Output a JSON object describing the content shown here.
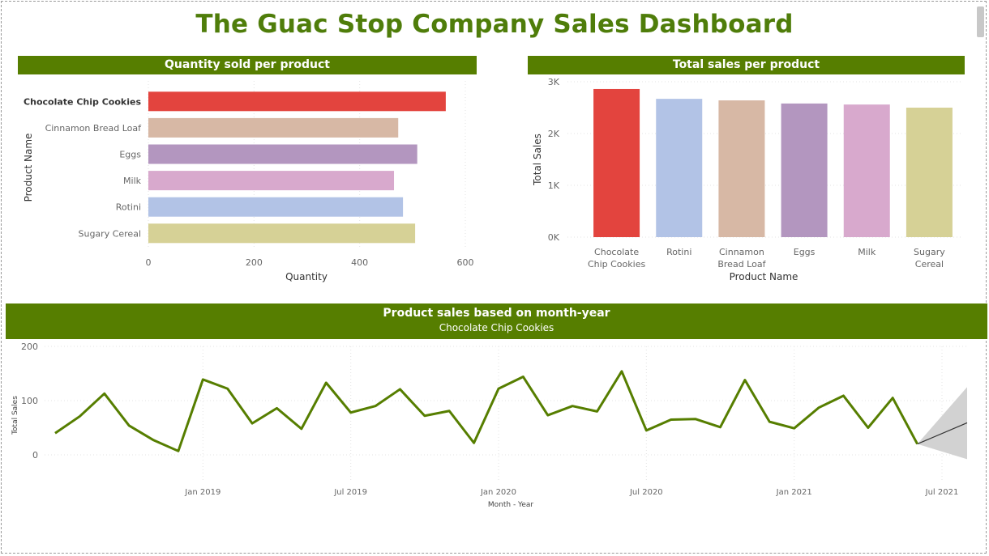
{
  "page": {
    "title": "The Guac Stop Company Sales Dashboard"
  },
  "colors": {
    "green": "#567e00",
    "title_green": "#4f7d0a",
    "product_colors": {
      "Chocolate Chip Cookies": "#e3443e",
      "Cinnamon Bread Loaf": "#d7b8a5",
      "Eggs": "#b396bf",
      "Milk": "#d8a9cd",
      "Rotini": "#b2c3e6",
      "Sugary Cereal": "#d6d196"
    }
  },
  "chart_data": [
    {
      "type": "bar",
      "orientation": "horizontal",
      "title": "Quantity sold per product",
      "xlabel": "Quantity",
      "ylabel": "Product Name",
      "categories": [
        "Chocolate Chip Cookies",
        "Cinnamon Bread Loaf",
        "Eggs",
        "Milk",
        "Rotini",
        "Sugary Cereal"
      ],
      "values": [
        563,
        473,
        509,
        465,
        482,
        505
      ],
      "xlim": [
        0,
        600
      ],
      "xticks": [
        "0",
        "200",
        "400",
        "600"
      ],
      "highlighted": "Chocolate Chip Cookies",
      "grid": true
    },
    {
      "type": "bar",
      "title": "Total sales per product",
      "xlabel": "Product Name",
      "ylabel": "Total Sales",
      "categories": [
        [
          "Chocolate",
          "Chip Cookies"
        ],
        [
          "Rotini"
        ],
        [
          "Cinnamon",
          "Bread Loaf"
        ],
        [
          "Eggs"
        ],
        [
          "Milk"
        ],
        [
          "Sugary",
          "Cereal"
        ]
      ],
      "category_names": [
        "Chocolate Chip Cookies",
        "Rotini",
        "Cinnamon Bread Loaf",
        "Eggs",
        "Milk",
        "Sugary Cereal"
      ],
      "values": [
        2860,
        2670,
        2640,
        2580,
        2560,
        2500
      ],
      "ylim": [
        0,
        3000
      ],
      "yticks": [
        "0K",
        "1K",
        "2K",
        "3K"
      ],
      "grid": true
    },
    {
      "type": "line",
      "title": "Product sales based on month-year",
      "subtitle": "Chocolate Chip Cookies",
      "xlabel": "Month - Year",
      "ylabel": "Total Sales",
      "x": [
        "2018-07",
        "2018-08",
        "2018-09",
        "2018-10",
        "2018-11",
        "2018-12",
        "2019-01",
        "2019-02",
        "2019-03",
        "2019-04",
        "2019-05",
        "2019-06",
        "2019-07",
        "2019-08",
        "2019-09",
        "2019-10",
        "2019-11",
        "2019-12",
        "2020-01",
        "2020-02",
        "2020-03",
        "2020-04",
        "2020-05",
        "2020-06",
        "2020-07",
        "2020-08",
        "2020-09",
        "2020-10",
        "2020-11",
        "2020-12",
        "2021-01",
        "2021-02",
        "2021-03",
        "2021-04",
        "2021-05",
        "2021-06",
        "2021-07"
      ],
      "values": [
        40,
        71,
        113,
        54,
        27,
        7,
        139,
        122,
        58,
        86,
        48,
        133,
        78,
        90,
        121,
        72,
        81,
        22,
        122,
        144,
        73,
        90,
        80,
        154,
        45,
        65,
        66,
        51,
        138,
        61,
        49,
        87,
        109,
        50,
        105,
        20,
        59
      ],
      "forecast": {
        "x": [
          "2021-06",
          "2021-07"
        ],
        "values": [
          20,
          59
        ],
        "upper": [
          20,
          125
        ],
        "lower": [
          20,
          -8
        ]
      },
      "ylim": [
        -40,
        200
      ],
      "yticks": [
        "0",
        "100",
        "200"
      ],
      "xticks": [
        "Jan 2019",
        "Jul 2019",
        "Jan 2020",
        "Jul 2020",
        "Jan 2021",
        "Jul 2021"
      ],
      "grid": true
    }
  ]
}
